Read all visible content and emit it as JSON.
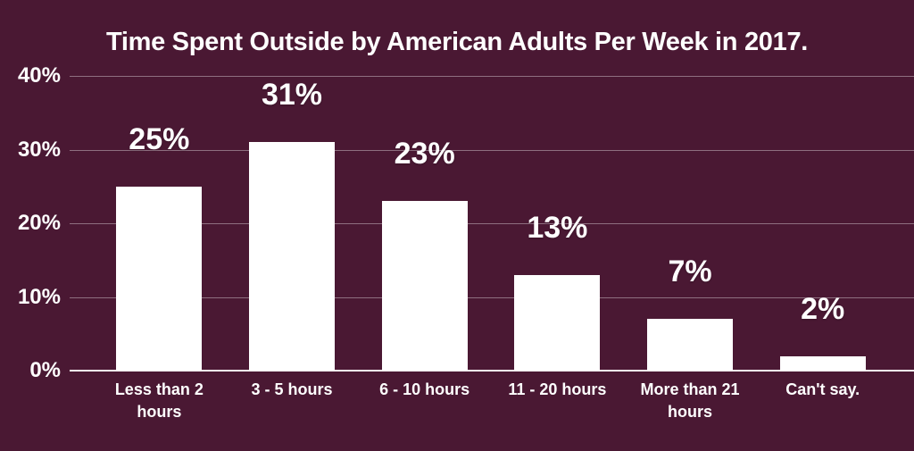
{
  "title": "Time Spent Outside by American Adults Per Week in 2017.",
  "colors": {
    "background": "#4A1833",
    "bar_fill": "#FFFFFF",
    "text": "#FFFFFF",
    "gridline": "rgba(255,255,255,0.38)",
    "axis_line": "rgba(255,255,255,0.95)"
  },
  "chart_data": {
    "type": "bar",
    "title": "Time Spent Outside by American Adults Per Week in 2017.",
    "categories": [
      "Less than 2 hours",
      "3 - 5 hours",
      "6 - 10 hours",
      "11 - 20 hours",
      "More than 21 hours",
      "Can't say."
    ],
    "values": [
      25,
      31,
      23,
      13,
      7,
      2
    ],
    "value_labels": [
      "25%",
      "31%",
      "23%",
      "13%",
      "7%",
      "2%"
    ],
    "unit": "%",
    "xlabel": "",
    "ylabel": "",
    "ylim": [
      0,
      40
    ],
    "y_ticks": [
      "40%",
      "30%",
      "20%",
      "10%",
      "0%"
    ],
    "y_tick_values": [
      40,
      30,
      20,
      10,
      0
    ],
    "grid": "horizontal gridlines every 10%",
    "legend": "none",
    "orientation": "vertical"
  }
}
